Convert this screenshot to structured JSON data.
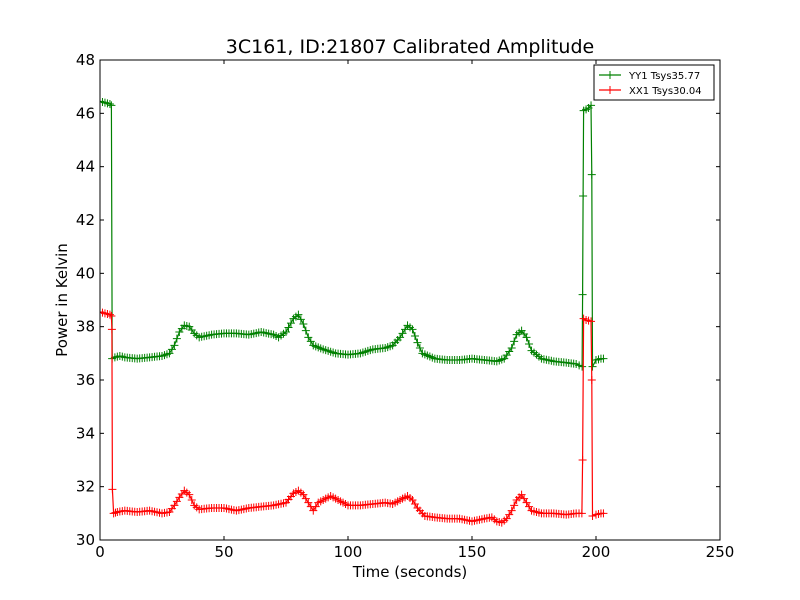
{
  "chart_data": {
    "type": "line",
    "title": "3C161, ID:21807 Calibrated Amplitude",
    "xlabel": "Time (seconds)",
    "ylabel": "Power in Kelvin",
    "xlim": [
      0,
      250
    ],
    "ylim": [
      30,
      48
    ],
    "xticks": [
      0,
      50,
      100,
      150,
      200,
      250
    ],
    "yticks": [
      30,
      32,
      34,
      36,
      38,
      40,
      42,
      44,
      46,
      48
    ],
    "grid": false,
    "legend_position": "top-right",
    "marker": "+",
    "series": [
      {
        "name": "YY1 Tsys35.77",
        "color": "#008000",
        "points": [
          [
            0,
            46.45
          ],
          [
            2,
            46.4
          ],
          [
            4,
            46.35
          ],
          [
            4.6,
            46.3
          ],
          [
            4.9,
            36.8
          ],
          [
            6,
            36.85
          ],
          [
            8,
            36.9
          ],
          [
            10,
            36.85
          ],
          [
            15,
            36.8
          ],
          [
            20,
            36.85
          ],
          [
            25,
            36.9
          ],
          [
            28,
            37.0
          ],
          [
            30,
            37.3
          ],
          [
            32,
            37.8
          ],
          [
            34,
            38.05
          ],
          [
            36,
            38.0
          ],
          [
            38,
            37.75
          ],
          [
            40,
            37.6
          ],
          [
            45,
            37.7
          ],
          [
            50,
            37.75
          ],
          [
            55,
            37.75
          ],
          [
            60,
            37.7
          ],
          [
            65,
            37.8
          ],
          [
            70,
            37.7
          ],
          [
            72,
            37.6
          ],
          [
            75,
            37.8
          ],
          [
            78,
            38.3
          ],
          [
            80,
            38.45
          ],
          [
            82,
            38.1
          ],
          [
            84,
            37.6
          ],
          [
            86,
            37.3
          ],
          [
            90,
            37.15
          ],
          [
            95,
            37.0
          ],
          [
            100,
            36.95
          ],
          [
            105,
            37.0
          ],
          [
            110,
            37.15
          ],
          [
            115,
            37.2
          ],
          [
            118,
            37.3
          ],
          [
            121,
            37.6
          ],
          [
            124,
            38.05
          ],
          [
            126,
            37.9
          ],
          [
            128,
            37.4
          ],
          [
            130,
            37.0
          ],
          [
            135,
            36.8
          ],
          [
            140,
            36.75
          ],
          [
            145,
            36.75
          ],
          [
            150,
            36.8
          ],
          [
            155,
            36.75
          ],
          [
            160,
            36.7
          ],
          [
            163,
            36.8
          ],
          [
            166,
            37.2
          ],
          [
            168,
            37.7
          ],
          [
            170,
            37.85
          ],
          [
            172,
            37.6
          ],
          [
            174,
            37.1
          ],
          [
            178,
            36.8
          ],
          [
            183,
            36.7
          ],
          [
            188,
            36.65
          ],
          [
            192,
            36.6
          ],
          [
            194.4,
            36.5
          ],
          [
            194.6,
            39.2
          ],
          [
            194.8,
            42.9
          ],
          [
            195,
            46.1
          ],
          [
            197,
            46.2
          ],
          [
            198,
            46.3
          ],
          [
            198.3,
            43.7
          ],
          [
            198.6,
            36.5
          ],
          [
            200,
            36.75
          ],
          [
            202,
            36.8
          ],
          [
            203,
            36.8
          ]
        ]
      },
      {
        "name": "XX1 Tsys30.04",
        "color": "#ff0000",
        "points": [
          [
            0,
            38.55
          ],
          [
            2,
            38.5
          ],
          [
            4,
            38.45
          ],
          [
            4.6,
            38.4
          ],
          [
            4.8,
            37.9
          ],
          [
            5,
            31.9
          ],
          [
            5.5,
            31.0
          ],
          [
            7,
            31.05
          ],
          [
            10,
            31.1
          ],
          [
            15,
            31.05
          ],
          [
            20,
            31.1
          ],
          [
            25,
            31.0
          ],
          [
            28,
            31.05
          ],
          [
            30,
            31.3
          ],
          [
            32,
            31.6
          ],
          [
            34,
            31.85
          ],
          [
            36,
            31.7
          ],
          [
            38,
            31.3
          ],
          [
            40,
            31.15
          ],
          [
            45,
            31.2
          ],
          [
            50,
            31.2
          ],
          [
            55,
            31.1
          ],
          [
            60,
            31.2
          ],
          [
            65,
            31.25
          ],
          [
            70,
            31.3
          ],
          [
            75,
            31.4
          ],
          [
            78,
            31.75
          ],
          [
            80,
            31.85
          ],
          [
            82,
            31.7
          ],
          [
            84,
            31.4
          ],
          [
            86,
            31.1
          ],
          [
            88,
            31.4
          ],
          [
            90,
            31.5
          ],
          [
            93,
            31.65
          ],
          [
            96,
            31.5
          ],
          [
            100,
            31.3
          ],
          [
            105,
            31.3
          ],
          [
            110,
            31.35
          ],
          [
            115,
            31.4
          ],
          [
            118,
            31.35
          ],
          [
            121,
            31.5
          ],
          [
            124,
            31.65
          ],
          [
            126,
            31.5
          ],
          [
            128,
            31.2
          ],
          [
            131,
            30.9
          ],
          [
            135,
            30.85
          ],
          [
            140,
            30.8
          ],
          [
            145,
            30.8
          ],
          [
            150,
            30.7
          ],
          [
            155,
            30.8
          ],
          [
            158,
            30.85
          ],
          [
            160,
            30.7
          ],
          [
            162,
            30.65
          ],
          [
            164,
            30.8
          ],
          [
            166,
            31.1
          ],
          [
            168,
            31.5
          ],
          [
            170,
            31.7
          ],
          [
            172,
            31.4
          ],
          [
            174,
            31.1
          ],
          [
            178,
            31.0
          ],
          [
            183,
            31.0
          ],
          [
            188,
            30.95
          ],
          [
            192,
            31.0
          ],
          [
            194.3,
            31.0
          ],
          [
            194.6,
            33.0
          ],
          [
            195,
            38.3
          ],
          [
            196,
            38.25
          ],
          [
            198,
            38.2
          ],
          [
            198.3,
            36.0
          ],
          [
            198.6,
            30.9
          ],
          [
            200,
            30.95
          ],
          [
            202,
            31.0
          ],
          [
            203,
            31.0
          ]
        ]
      }
    ]
  }
}
